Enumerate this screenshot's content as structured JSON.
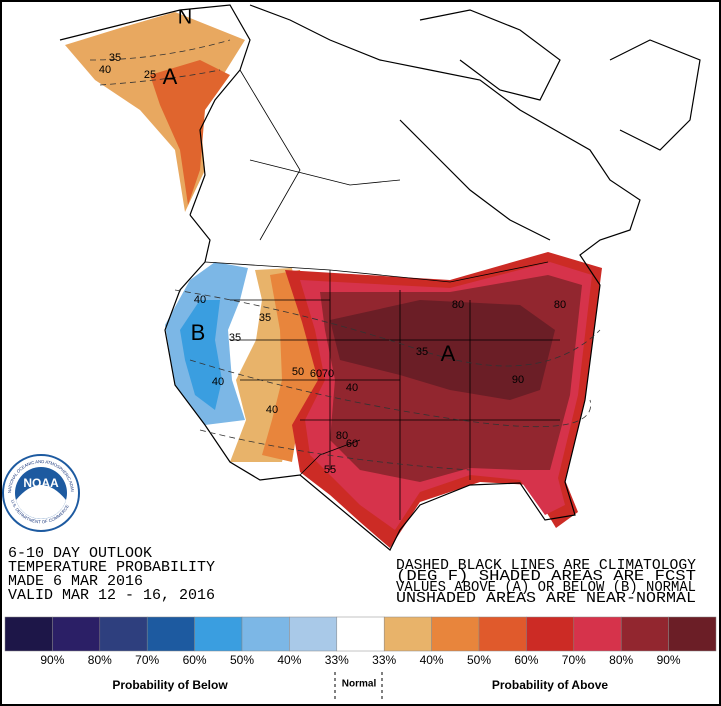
{
  "map": {
    "north": "N",
    "contour_labels": [
      "40",
      "25",
      "35",
      "A",
      "40",
      "B",
      "35",
      "35",
      "40",
      "50",
      "60",
      "70",
      "40",
      "40",
      "80",
      "55",
      "60",
      "80",
      "35",
      "A",
      "90",
      "80"
    ],
    "logo": {
      "name": "NOAA",
      "ring_top": "NATIONAL OCEANIC AND ATMOSPHERIC ADMINISTRATION",
      "ring_bottom": "U.S. DEPARTMENT OF COMMERCE"
    },
    "outlook": [
      "6-10 DAY OUTLOOK",
      "TEMPERATURE PROBABILITY",
      "MADE  6 MAR 2016",
      "VALID  MAR 12 - 16, 2016"
    ],
    "notes": [
      "DASHED BLACK LINES ARE CLIMATOLOGY",
      "(DEG F) SHADED AREAS ARE FCST",
      "VALUES ABOVE (A) OR BELOW (B) NORMAL",
      "UNSHADED AREAS ARE NEAR-NORMAL"
    ]
  },
  "legend": {
    "colors": [
      "#1d1648",
      "#2b1f66",
      "#2e3f7e",
      "#1d5aa0",
      "#3a9ee0",
      "#7cb7e6",
      "#a9c9e8",
      "#ffffff",
      "#e8b36a",
      "#e8853c",
      "#e05a2c",
      "#cc2b25",
      "#d6334b",
      "#92262f",
      "#6b1e26"
    ],
    "labels": [
      "90%",
      "80%",
      "70%",
      "60%",
      "50%",
      "40%",
      "33%",
      "33%",
      "40%",
      "50%",
      "60%",
      "70%",
      "80%",
      "90%"
    ],
    "below": "Probability of Below",
    "normal": "Normal",
    "above": "Probability of Above"
  }
}
